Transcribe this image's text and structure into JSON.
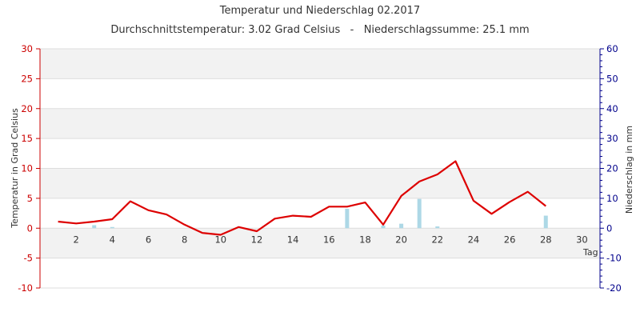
{
  "chart_data": {
    "type": "line",
    "title": "Temperatur und Niederschlag 02.2017",
    "subtitle": "Durchschnittstemperatur: 3.02 Grad Celsius   -   Niederschlagssumme: 25.1 mm",
    "ylabel_left": "Temperatur in Grad Celsius",
    "ylabel_right": "Niederschlag in mm",
    "xlabel": "Tag",
    "xlim": [
      0,
      31
    ],
    "ylim_left": [
      -10,
      30
    ],
    "ylim_right": [
      -20,
      60
    ],
    "yticks_left": [
      -10,
      -5,
      0,
      5,
      10,
      15,
      20,
      25,
      30
    ],
    "yticks_right": [
      -20,
      -10,
      0,
      10,
      20,
      30,
      40,
      50,
      60
    ],
    "xticks": [
      2,
      4,
      6,
      8,
      10,
      12,
      14,
      16,
      18,
      20,
      22,
      24,
      26,
      28,
      30
    ],
    "grid": true,
    "colors": {
      "temperature": "#dd0000",
      "precipitation": "#add8e6",
      "left_axis": "#cc0000",
      "right_axis": "#00008b",
      "band": "#f2f2f2",
      "grid": "#dddddd"
    },
    "series": [
      {
        "axis": "left",
        "kind": "line",
        "x": [
          1,
          2,
          3,
          4,
          5,
          6,
          7,
          8,
          9,
          10,
          11,
          12,
          13,
          14,
          15,
          16,
          17,
          18,
          19,
          20,
          21,
          22,
          23,
          24,
          25,
          26,
          27,
          28
        ],
        "values": [
          1.1,
          0.8,
          1.1,
          1.5,
          4.5,
          3.0,
          2.3,
          0.6,
          -0.8,
          -1.1,
          0.2,
          -0.5,
          1.6,
          2.1,
          1.9,
          3.6,
          3.6,
          4.3,
          0.6,
          5.4,
          7.8,
          9.0,
          11.2,
          4.6,
          2.4,
          4.4,
          6.1,
          3.7
        ]
      },
      {
        "axis": "right",
        "kind": "bar",
        "x": [
          1,
          2,
          3,
          4,
          5,
          6,
          7,
          8,
          9,
          10,
          11,
          12,
          13,
          14,
          15,
          16,
          17,
          18,
          19,
          20,
          21,
          22,
          23,
          24,
          25,
          26,
          27,
          28
        ],
        "values": [
          0,
          0,
          1.0,
          0.4,
          0,
          0,
          0,
          0,
          0,
          0,
          0,
          0,
          0,
          0,
          0,
          0,
          6.5,
          0,
          0.9,
          1.5,
          9.8,
          0.6,
          0,
          0,
          0,
          0,
          0,
          4.2
        ]
      }
    ]
  }
}
